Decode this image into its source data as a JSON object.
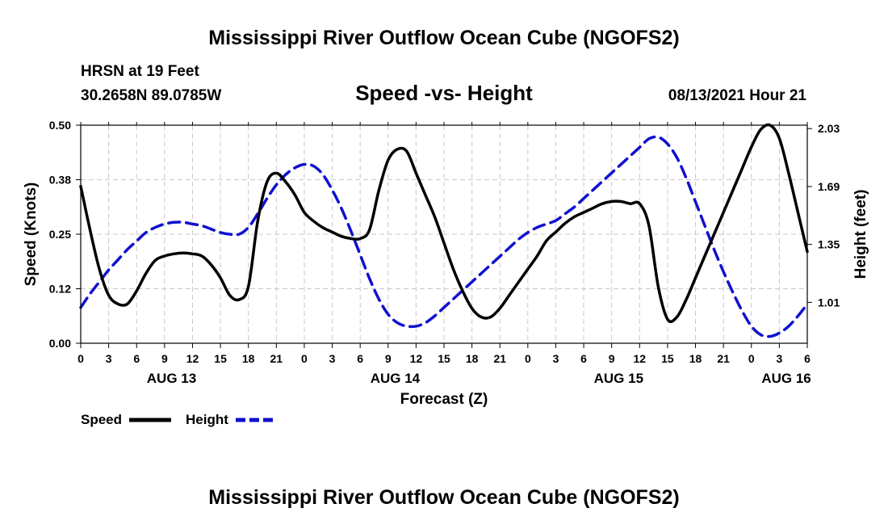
{
  "page": {
    "title_top": "Mississippi River Outflow Ocean Cube (NGOFS2)",
    "title_bottom": "Mississippi River Outflow Ocean Cube (NGOFS2)",
    "station": "HRSN at 19 Feet",
    "location": "30.2658N  89.0785W",
    "subtitle": "Speed -vs- Height",
    "datetime": "08/13/2021 Hour 21"
  },
  "chart_data": {
    "type": "line",
    "title": "Speed -vs- Height",
    "xlabel": "Forecast (Z)",
    "ylabel": "Speed (Knots)",
    "y2label": "Height (feet)",
    "xlim": [
      0,
      78
    ],
    "ylim": [
      0,
      0.5
    ],
    "y2lim": [
      0.77,
      2.05
    ],
    "x_ticks": [
      0,
      3,
      6,
      9,
      12,
      15,
      18,
      21,
      24,
      27,
      30,
      33,
      36,
      39,
      42,
      45,
      48,
      51,
      54,
      57,
      60,
      63,
      66,
      69,
      72,
      75,
      78
    ],
    "x_tick_labels": [
      "0",
      "3",
      "6",
      "9",
      "12",
      "15",
      "18",
      "21",
      "0",
      "3",
      "6",
      "9",
      "12",
      "15",
      "18",
      "21",
      "0",
      "3",
      "6",
      "9",
      "12",
      "15",
      "18",
      "21",
      "0",
      "3",
      "6"
    ],
    "y_ticks": [
      0,
      0.125,
      0.25,
      0.375,
      0.5
    ],
    "y_tick_labels": [
      "0.00",
      "0.12",
      "0.25",
      "0.38",
      "0.50"
    ],
    "y2_ticks": [
      1.01,
      1.35,
      1.69,
      2.03
    ],
    "y2_tick_labels": [
      "1.01",
      "1.35",
      "1.69",
      "2.03"
    ],
    "date_labels": [
      {
        "x": 9.75,
        "label": "AUG 13"
      },
      {
        "x": 33.75,
        "label": "AUG 14"
      },
      {
        "x": 57.75,
        "label": "AUG 15"
      },
      {
        "x": 75.75,
        "label": "AUG 16"
      }
    ],
    "grid": true,
    "legend": [
      {
        "name": "Speed",
        "color": "#000000",
        "style": "solid"
      },
      {
        "name": "Height",
        "color": "#1010d0",
        "style": "dashed"
      }
    ],
    "series": [
      {
        "name": "Speed",
        "axis": "left",
        "color": "#000000",
        "x": [
          0,
          1,
          2,
          3,
          4,
          5,
          6,
          7,
          8,
          9,
          10,
          11,
          12,
          13,
          14,
          15,
          16,
          17,
          18,
          19,
          20,
          21,
          22,
          23,
          24,
          25,
          26,
          27,
          28,
          29,
          30,
          31,
          32,
          33,
          34,
          35,
          36,
          37,
          38,
          39,
          40,
          41,
          42,
          43,
          44,
          45,
          46,
          47,
          48,
          49,
          50,
          51,
          52,
          53,
          54,
          55,
          56,
          57,
          58,
          59,
          60,
          61,
          62,
          63,
          64,
          65,
          66,
          67,
          68,
          69,
          70,
          71,
          72,
          73,
          74,
          75,
          76,
          77,
          78
        ],
        "values": [
          0.36,
          0.26,
          0.17,
          0.11,
          0.09,
          0.09,
          0.12,
          0.16,
          0.19,
          0.2,
          0.205,
          0.207,
          0.205,
          0.2,
          0.18,
          0.15,
          0.11,
          0.1,
          0.13,
          0.28,
          0.37,
          0.39,
          0.37,
          0.34,
          0.3,
          0.28,
          0.265,
          0.255,
          0.245,
          0.24,
          0.24,
          0.26,
          0.35,
          0.42,
          0.445,
          0.44,
          0.39,
          0.34,
          0.29,
          0.23,
          0.17,
          0.12,
          0.08,
          0.06,
          0.06,
          0.08,
          0.11,
          0.14,
          0.17,
          0.2,
          0.235,
          0.255,
          0.275,
          0.29,
          0.3,
          0.31,
          0.32,
          0.325,
          0.325,
          0.32,
          0.32,
          0.27,
          0.13,
          0.055,
          0.06,
          0.1,
          0.15,
          0.2,
          0.25,
          0.3,
          0.35,
          0.4,
          0.45,
          0.49,
          0.5,
          0.47,
          0.39,
          0.3,
          0.21
        ]
      },
      {
        "name": "Height",
        "axis": "right",
        "color": "#1010d0",
        "x": [
          0,
          1,
          2,
          3,
          4,
          5,
          6,
          7,
          8,
          9,
          10,
          11,
          12,
          13,
          14,
          15,
          16,
          17,
          18,
          19,
          20,
          21,
          22,
          23,
          24,
          25,
          26,
          27,
          28,
          29,
          30,
          31,
          32,
          33,
          34,
          35,
          36,
          37,
          38,
          39,
          40,
          41,
          42,
          43,
          44,
          45,
          46,
          47,
          48,
          49,
          50,
          51,
          52,
          53,
          54,
          55,
          56,
          57,
          58,
          59,
          60,
          61,
          62,
          63,
          64,
          65,
          66,
          67,
          68,
          69,
          70,
          71,
          72,
          73,
          74,
          75,
          76,
          77,
          78
        ],
        "values": [
          0.98,
          1.06,
          1.13,
          1.2,
          1.26,
          1.32,
          1.37,
          1.42,
          1.45,
          1.47,
          1.48,
          1.48,
          1.47,
          1.46,
          1.44,
          1.42,
          1.41,
          1.41,
          1.45,
          1.53,
          1.62,
          1.7,
          1.76,
          1.8,
          1.82,
          1.81,
          1.76,
          1.67,
          1.56,
          1.43,
          1.29,
          1.15,
          1.03,
          0.94,
          0.89,
          0.87,
          0.87,
          0.89,
          0.93,
          0.98,
          1.03,
          1.08,
          1.13,
          1.18,
          1.23,
          1.28,
          1.33,
          1.38,
          1.42,
          1.45,
          1.47,
          1.49,
          1.53,
          1.57,
          1.62,
          1.67,
          1.72,
          1.77,
          1.82,
          1.87,
          1.92,
          1.97,
          1.98,
          1.94,
          1.86,
          1.74,
          1.6,
          1.46,
          1.32,
          1.19,
          1.07,
          0.96,
          0.87,
          0.82,
          0.81,
          0.83,
          0.87,
          0.93,
          1.0
        ]
      }
    ]
  }
}
